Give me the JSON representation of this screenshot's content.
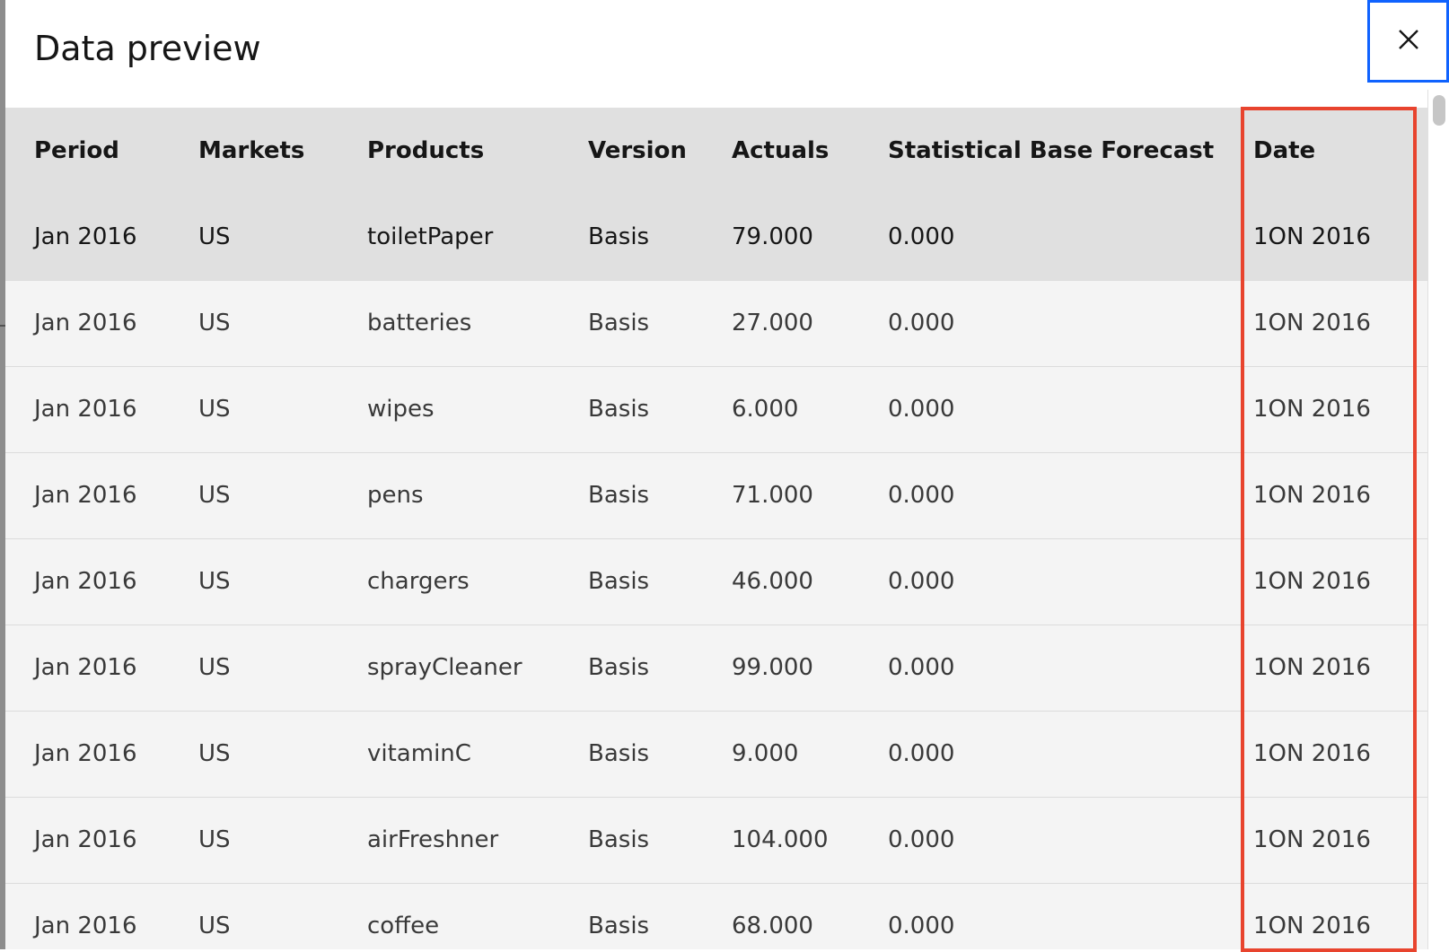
{
  "dialog": {
    "title": "Data preview",
    "close_label": "Close",
    "accent_color": "#0f62fe",
    "highlight_color": "#e8442e"
  },
  "table": {
    "columns": [
      "Period",
      "Markets",
      "Products",
      "Version",
      "Actuals",
      "Statistical Base Forecast",
      "Date"
    ],
    "rows": [
      [
        "Jan 2016",
        "US",
        "toiletPaper",
        "Basis",
        "79.000",
        "0.000",
        "1ON 2016"
      ],
      [
        "Jan 2016",
        "US",
        "batteries",
        "Basis",
        "27.000",
        "0.000",
        "1ON 2016"
      ],
      [
        "Jan 2016",
        "US",
        "wipes",
        "Basis",
        "6.000",
        "0.000",
        "1ON 2016"
      ],
      [
        "Jan 2016",
        "US",
        "pens",
        "Basis",
        "71.000",
        "0.000",
        "1ON 2016"
      ],
      [
        "Jan 2016",
        "US",
        "chargers",
        "Basis",
        "46.000",
        "0.000",
        "1ON 2016"
      ],
      [
        "Jan 2016",
        "US",
        "sprayCleaner",
        "Basis",
        "99.000",
        "0.000",
        "1ON 2016"
      ],
      [
        "Jan 2016",
        "US",
        "vitaminC",
        "Basis",
        "9.000",
        "0.000",
        "1ON 2016"
      ],
      [
        "Jan 2016",
        "US",
        "airFreshner",
        "Basis",
        "104.000",
        "0.000",
        "1ON 2016"
      ],
      [
        "Jan 2016",
        "US",
        "coffee",
        "Basis",
        "68.000",
        "0.000",
        "1ON 2016"
      ]
    ]
  }
}
